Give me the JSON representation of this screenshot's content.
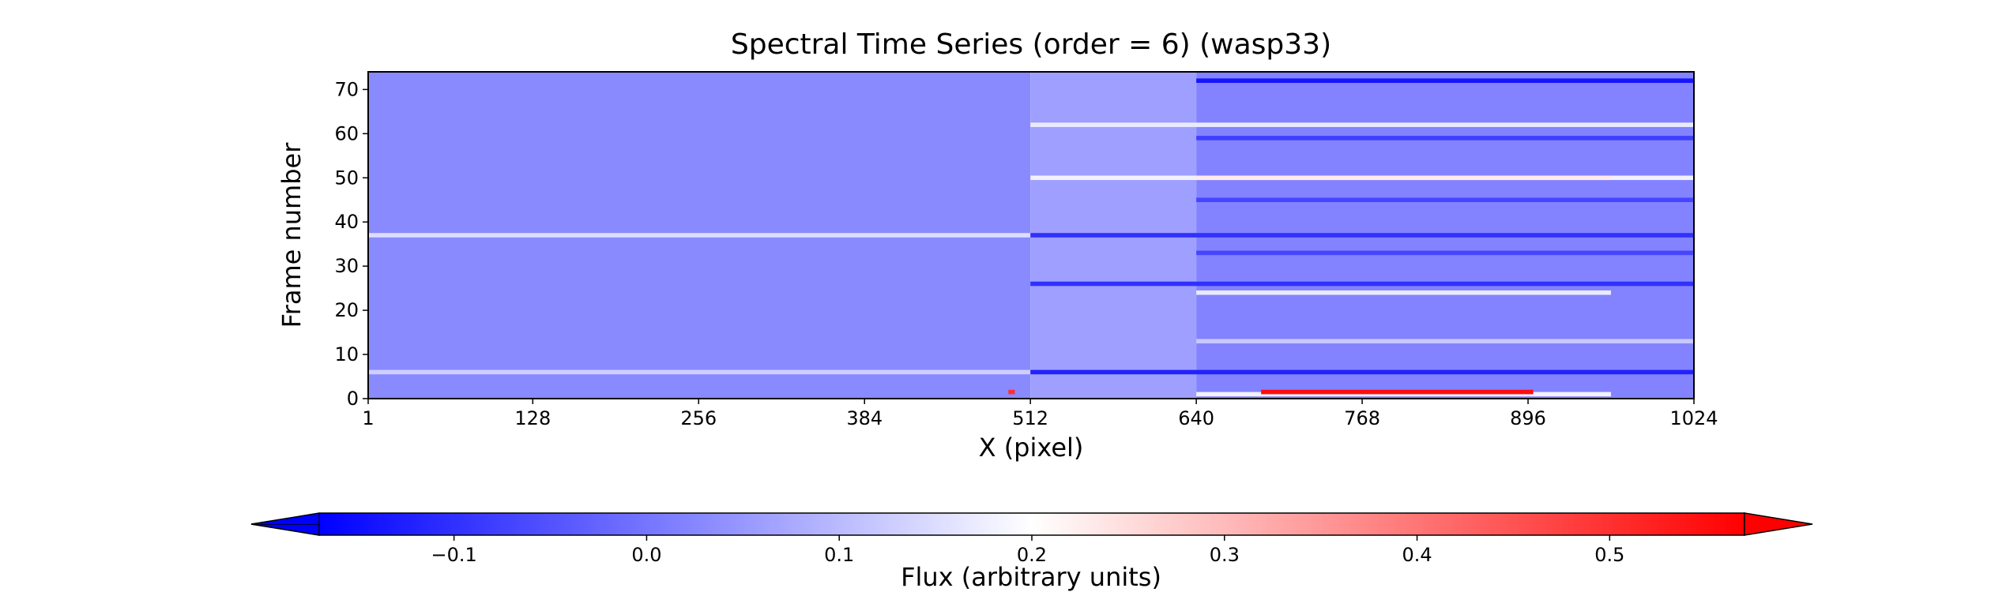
{
  "chart_data": {
    "type": "heatmap",
    "title": "Spectral Time Series (order = 6) (wasp33)",
    "xlabel": "X (pixel)",
    "ylabel": "Frame number",
    "xlim": [
      1,
      1024
    ],
    "ylim": [
      0,
      74
    ],
    "x_ticks": [
      1,
      128,
      256,
      384,
      512,
      640,
      768,
      896,
      1024
    ],
    "y_ticks": [
      0,
      10,
      20,
      30,
      40,
      50,
      60,
      70
    ],
    "colormap": "bwr",
    "colormap_colors": [
      "#0000ff",
      "#ffffff",
      "#ff0000"
    ],
    "colorbar": {
      "label": "Flux (arbitrary units)",
      "orientation": "horizontal",
      "extend": "both",
      "range": [
        -0.17,
        0.57
      ],
      "ticks": [
        -0.1,
        0.0,
        0.1,
        0.2,
        0.3,
        0.4,
        0.5
      ],
      "tick_labels": [
        "−0.1",
        "0.0",
        "0.1",
        "0.2",
        "0.3",
        "0.4",
        "0.5"
      ]
    },
    "base_levels": [
      {
        "x_from": 1,
        "x_to": 512,
        "value": 0.03
      },
      {
        "x_from": 512,
        "x_to": 640,
        "value": 0.06
      },
      {
        "x_from": 640,
        "x_to": 1024,
        "value": 0.02
      }
    ],
    "frame_features": [
      {
        "frame": 1,
        "x_from": 640,
        "x_to": 960,
        "value": 0.18,
        "note": "bright band"
      },
      {
        "frame": 1.5,
        "x_from": 690,
        "x_to": 900,
        "value": 0.55,
        "note": "red line"
      },
      {
        "frame": 1.5,
        "x_from": 495,
        "x_to": 500,
        "value": 0.5
      },
      {
        "frame": 6,
        "x_from": 1,
        "x_to": 512,
        "value": 0.13
      },
      {
        "frame": 6,
        "x_from": 512,
        "x_to": 1024,
        "value": -0.12
      },
      {
        "frame": 13,
        "x_from": 640,
        "x_to": 1024,
        "value": 0.12
      },
      {
        "frame": 24,
        "x_from": 640,
        "x_to": 960,
        "value": 0.17
      },
      {
        "frame": 26,
        "x_from": 512,
        "x_to": 1024,
        "value": -0.1
      },
      {
        "frame": 33,
        "x_from": 640,
        "x_to": 1024,
        "value": -0.07
      },
      {
        "frame": 37,
        "x_from": 1,
        "x_to": 512,
        "value": 0.15
      },
      {
        "frame": 37,
        "x_from": 512,
        "x_to": 1024,
        "value": -0.1
      },
      {
        "frame": 45,
        "x_from": 640,
        "x_to": 1024,
        "value": -0.07
      },
      {
        "frame": 50,
        "x_from": 512,
        "x_to": 1024,
        "value": 0.18
      },
      {
        "frame": 50,
        "x_from": 640,
        "x_to": 960,
        "value": 0.23
      },
      {
        "frame": 59,
        "x_from": 640,
        "x_to": 1024,
        "value": -0.08
      },
      {
        "frame": 62,
        "x_from": 512,
        "x_to": 1024,
        "value": 0.17
      },
      {
        "frame": 72,
        "x_from": 640,
        "x_to": 1024,
        "value": -0.14
      }
    ]
  }
}
